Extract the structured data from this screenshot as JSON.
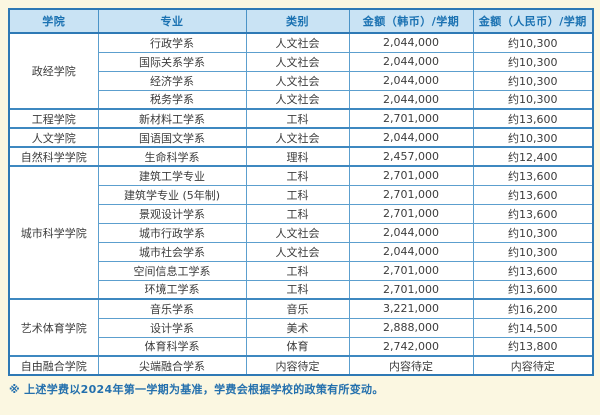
{
  "colors": {
    "page_background": "#FBF7E1",
    "header_background": "#C9E3F4",
    "header_text": "#1B72B2",
    "border_blue": "#4A93C7",
    "outer_border": "#2E79B5",
    "cell_text": "#3C3C3C",
    "footnote_text": "#2470AD"
  },
  "table": {
    "headers": [
      "学院",
      "专业",
      "类别",
      "金额（韩币）/学期",
      "金额（人民币）/学期"
    ],
    "groups": [
      {
        "college": "政经学院",
        "rows": [
          [
            "行政学系",
            "人文社会",
            "2,044,000",
            "约10,300"
          ],
          [
            "国际关系学系",
            "人文社会",
            "2,044,000",
            "约10,300"
          ],
          [
            "经济学系",
            "人文社会",
            "2,044,000",
            "约10,300"
          ],
          [
            "税务学系",
            "人文社会",
            "2,044,000",
            "约10,300"
          ]
        ]
      },
      {
        "college": "工程学院",
        "rows": [
          [
            "新材料工学系",
            "工科",
            "2,701,000",
            "约13,600"
          ]
        ]
      },
      {
        "college": "人文学院",
        "rows": [
          [
            "国语国文学系",
            "人文社会",
            "2,044,000",
            "约10,300"
          ]
        ]
      },
      {
        "college": "自然科学学院",
        "rows": [
          [
            "生命科学系",
            "理科",
            "2,457,000",
            "约12,400"
          ]
        ]
      },
      {
        "college": "城市科学学院",
        "rows": [
          [
            "建筑工学专业",
            "工科",
            "2,701,000",
            "约13,600"
          ],
          [
            "建筑学专业 (5年制)",
            "工科",
            "2,701,000",
            "约13,600"
          ],
          [
            "景观设计学系",
            "工科",
            "2,701,000",
            "约13,600"
          ],
          [
            "城市行政学系",
            "人文社会",
            "2,044,000",
            "约10,300"
          ],
          [
            "城市社会学系",
            "人文社会",
            "2,044,000",
            "约10,300"
          ],
          [
            "空间信息工学系",
            "工科",
            "2,701,000",
            "约13,600"
          ],
          [
            "环境工学系",
            "工科",
            "2,701,000",
            "约13,600"
          ]
        ]
      },
      {
        "college": "艺术体育学院",
        "rows": [
          [
            "音乐学系",
            "音乐",
            "3,221,000",
            "约16,200"
          ],
          [
            "设计学系",
            "美术",
            "2,888,000",
            "约14,500"
          ],
          [
            "体育科学系",
            "体育",
            "2,742,000",
            "约13,800"
          ]
        ]
      },
      {
        "college": "自由融合学院",
        "rows": [
          [
            "尖端融合学系",
            "内容待定",
            "内容待定",
            "内容待定"
          ]
        ]
      }
    ]
  },
  "footnote": "※ 上述学费以2024年第一学期为基准，学费会根据学校的政策有所变动。"
}
